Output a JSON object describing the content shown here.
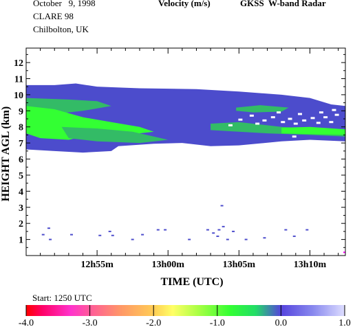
{
  "header": {
    "date": "October   9, 1998",
    "campaign": "CLARE 98",
    "location": "Chilbolton, UK",
    "quantity": "Velocity (m/s)",
    "instrument": "GKSS  W-band Radar"
  },
  "footer": {
    "start_label": "Start: 1250 UTC"
  },
  "chart_data": {
    "type": "heatmap",
    "title": "Velocity (m/s)",
    "xlabel": "TIME (UTC)",
    "ylabel": "HEIGHT AGL (km)",
    "x_unit": "minutes after 12:50 UTC",
    "xlim": [
      0,
      22.5
    ],
    "ylim": [
      0,
      12.9
    ],
    "x_ticks": [
      {
        "value": 5,
        "label": "12h55m"
      },
      {
        "value": 10,
        "label": "13h00m"
      },
      {
        "value": 15,
        "label": "13h05m"
      },
      {
        "value": 20,
        "label": "13h10m"
      }
    ],
    "y_ticks": [
      1,
      2,
      3,
      4,
      5,
      6,
      7,
      8,
      9,
      10,
      11,
      12
    ],
    "colorbar": {
      "min": -4.0,
      "max": 1.0,
      "tick_labels": [
        "-4.0",
        "-3.0",
        "-2.0",
        "-1.0",
        "0.0",
        "1.0"
      ],
      "tick_values": [
        -4.0,
        -3.0,
        -2.0,
        -1.0,
        0.0,
        1.0
      ],
      "stops": [
        {
          "value": -4.0,
          "color": "#ff0000"
        },
        {
          "value": -3.75,
          "color": "#ff0066"
        },
        {
          "value": -3.3,
          "color": "#ff33cc"
        },
        {
          "value": -3.0,
          "color": "#ff5a99"
        },
        {
          "value": -2.5,
          "color": "#ff9966"
        },
        {
          "value": -2.0,
          "color": "#ffcc55"
        },
        {
          "value": -1.7,
          "color": "#ffff66"
        },
        {
          "value": -1.3,
          "color": "#aaff44"
        },
        {
          "value": -0.8,
          "color": "#33ff33"
        },
        {
          "value": -0.4,
          "color": "#22dd66"
        },
        {
          "value": 0.0,
          "color": "#5544dd"
        },
        {
          "value": 0.5,
          "color": "#8888ee"
        },
        {
          "value": 1.0,
          "color": "#ddddff"
        }
      ]
    },
    "layers": [
      {
        "velocity": -0.1,
        "color": "#4c4ccc",
        "top": [
          [
            0,
            10.6
          ],
          [
            2,
            10.6
          ],
          [
            3.5,
            10.7
          ],
          [
            5,
            10.5
          ],
          [
            8,
            10.4
          ],
          [
            12,
            10.35
          ],
          [
            15,
            10.2
          ],
          [
            18,
            10.0
          ],
          [
            20,
            9.8
          ],
          [
            21.5,
            9.4
          ],
          [
            22.5,
            9.3
          ]
        ],
        "bottom": [
          [
            0,
            6.6
          ],
          [
            2,
            6.5
          ],
          [
            4,
            6.4
          ],
          [
            6,
            6.5
          ],
          [
            6.5,
            6.8
          ],
          [
            9,
            6.95
          ],
          [
            11,
            7.0
          ],
          [
            13,
            6.8
          ],
          [
            15,
            6.85
          ],
          [
            18,
            7.1
          ],
          [
            20,
            7.2
          ],
          [
            22.5,
            7.1
          ]
        ]
      },
      {
        "velocity": -0.45,
        "color": "#33bb66",
        "top": [
          [
            0,
            9.8
          ],
          [
            3,
            9.7
          ],
          [
            5,
            9.6
          ],
          [
            6,
            9.3
          ],
          [
            4,
            9.0
          ],
          [
            2,
            8.8
          ],
          [
            0,
            8.7
          ]
        ],
        "bottom": []
      },
      {
        "velocity": -0.9,
        "color": "#33ff33",
        "top": [
          [
            0,
            9.3
          ],
          [
            2,
            9.1
          ],
          [
            4,
            8.6
          ],
          [
            6,
            8.3
          ],
          [
            8,
            8.0
          ],
          [
            9,
            7.7
          ],
          [
            7,
            7.5
          ],
          [
            5,
            7.6
          ],
          [
            3,
            7.2
          ],
          [
            1,
            7.3
          ],
          [
            0,
            7.6
          ]
        ],
        "bottom": []
      },
      {
        "velocity": -0.45,
        "color": "#33bb66",
        "top": [
          [
            2.5,
            8.0
          ],
          [
            5,
            7.9
          ],
          [
            7.5,
            7.7
          ],
          [
            9,
            7.4
          ],
          [
            10,
            7.2
          ],
          [
            8,
            7.0
          ],
          [
            5,
            7.1
          ],
          [
            3,
            7.3
          ]
        ],
        "bottom": []
      },
      {
        "velocity": -0.45,
        "color": "#33bb66",
        "top": [
          [
            13,
            8.2
          ],
          [
            15,
            8.3
          ],
          [
            18,
            8.0
          ],
          [
            20,
            7.9
          ],
          [
            22.5,
            7.8
          ],
          [
            22.5,
            7.4
          ],
          [
            20,
            7.5
          ],
          [
            17,
            7.6
          ],
          [
            15,
            7.7
          ],
          [
            13,
            7.8
          ]
        ],
        "bottom": []
      },
      {
        "velocity": -0.9,
        "color": "#33ff33",
        "top": [
          [
            18,
            7.95
          ],
          [
            20,
            8.0
          ],
          [
            22.5,
            7.85
          ],
          [
            22.5,
            7.5
          ],
          [
            20,
            7.55
          ],
          [
            18,
            7.6
          ]
        ],
        "bottom": []
      },
      {
        "velocity": -0.45,
        "color": "#33bb66",
        "top": [
          [
            14.8,
            9.2
          ],
          [
            16.5,
            9.35
          ],
          [
            18.5,
            9.2
          ],
          [
            18,
            8.95
          ],
          [
            16,
            8.9
          ],
          [
            14.8,
            9.0
          ]
        ],
        "bottom": []
      }
    ],
    "gaps": [
      [
        16.8,
        8.4
      ],
      [
        17.4,
        8.6
      ],
      [
        18.1,
        8.3
      ],
      [
        18.6,
        8.5
      ],
      [
        19.0,
        8.2
      ],
      [
        19.6,
        8.4
      ],
      [
        20.2,
        8.55
      ],
      [
        20.6,
        8.25
      ],
      [
        21.1,
        8.6
      ],
      [
        21.5,
        8.3
      ],
      [
        15.9,
        8.7
      ],
      [
        16.3,
        8.2
      ],
      [
        19.3,
        8.8
      ],
      [
        20.8,
        8.9
      ],
      [
        21.9,
        8.75
      ],
      [
        17.8,
        8.9
      ],
      [
        14.4,
        8.1
      ],
      [
        15.1,
        8.45
      ],
      [
        18.9,
        7.4
      ],
      [
        21.7,
        9.05
      ]
    ],
    "points": [
      [
        1.6,
        1.7
      ],
      [
        1.2,
        1.3
      ],
      [
        1.7,
        1.0
      ],
      [
        3.2,
        1.3
      ],
      [
        5.2,
        1.25
      ],
      [
        5.9,
        1.5
      ],
      [
        6.1,
        1.25
      ],
      [
        7.5,
        1.0
      ],
      [
        8.2,
        1.3
      ],
      [
        9.3,
        1.6
      ],
      [
        9.8,
        1.6
      ],
      [
        11.5,
        1.0
      ],
      [
        12.8,
        1.6
      ],
      [
        13.6,
        1.6
      ],
      [
        13.9,
        1.8
      ],
      [
        13.2,
        1.4
      ],
      [
        13.5,
        1.2
      ],
      [
        14.2,
        1.0
      ],
      [
        14.6,
        1.5
      ],
      [
        15.5,
        1.0
      ],
      [
        16.8,
        1.1
      ],
      [
        18.3,
        1.6
      ],
      [
        18.9,
        1.2
      ],
      [
        19.8,
        1.6
      ],
      [
        13.8,
        3.1
      ],
      [
        22.45,
        0.2
      ]
    ]
  }
}
